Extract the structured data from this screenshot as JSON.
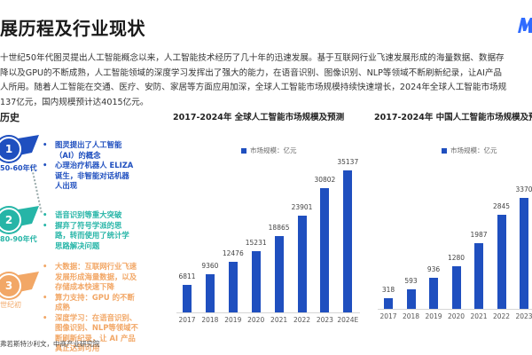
{
  "header": {
    "title": "展历程及行业现状",
    "logo_icon": "brand-logo-icon"
  },
  "intro": {
    "lines": [
      "十世纪50年代图灵提出人工智能概念以来，人工智能技术经历了几十年的迅速发展。基于互联网行业飞速发展形成的海量数据、数据存",
      "降以及GPU的不断成熟，人工智能领域的深度学习发挥出了强大的能力，在语音识别、图像识别、NLP等领域不断刷新纪录，让AI产品",
      "人所用。随着人工智能在交通、医疗、安防、家居等方面应用加深，全球人工智能市场规模持续快速增长，2024年全球人工智能市场规",
      "137亿元，国内规模预计达4015亿元。"
    ]
  },
  "history": {
    "title": "历史",
    "eras": [
      {
        "number": "1",
        "label": "50-60年代",
        "color": "#1f4fbf",
        "bullets": [
          "图灵提出了人工智能（AI）的概念",
          "心理治疗机器人 ELIZA 诞生，非智能对话机器人出现"
        ]
      },
      {
        "number": "2",
        "label": "80-90年代",
        "color": "#26b5a7",
        "bullets": [
          "语音识别等重大突破",
          "摒弃了符号学派的思路，转而使用了统计学思路解决问题"
        ]
      },
      {
        "number": "3",
        "label": "世纪初",
        "color": "#f2a766",
        "bullets": [
          "大数据：互联网行业飞速发展形成海量数据，以及存储成本快速下降",
          "算力支持：GPU 的不断成熟",
          "深度学习：在语音识别、图像识别、NLP等领域不断刷新纪录，让 AI 产品真正达到可用"
        ]
      }
    ]
  },
  "source": "弗若斯特沙利文，中商产业研究院",
  "chart_data": [
    {
      "type": "bar",
      "title": "2017-2024年 全球人工智能市场规模及预测",
      "legend": [
        "市场规模：亿元"
      ],
      "legend_position": "top",
      "categories": [
        "2017",
        "2018",
        "2019",
        "2020",
        "2021",
        "2022",
        "2023",
        "2024E"
      ],
      "series": [
        {
          "name": "市场规模：亿元",
          "values": [
            6811,
            9360,
            12476,
            15231,
            18865,
            23901,
            30802,
            35137
          ]
        }
      ],
      "xlabel": "",
      "ylabel": "",
      "ylim": [
        0,
        36000
      ],
      "grid": false,
      "color": "#1f4fbf"
    },
    {
      "type": "bar",
      "title": "2017-2024年 中国人工智能市场规模及预测",
      "legend": [
        "市场规模：亿元"
      ],
      "legend_position": "top",
      "categories": [
        "2017",
        "2018",
        "2019",
        "2020",
        "2021",
        "2022",
        "2023"
      ],
      "series": [
        {
          "name": "市场规模：亿元",
          "values": [
            318,
            593,
            936,
            1280,
            1987,
            2845,
            3370
          ]
        }
      ],
      "xlabel": "",
      "ylabel": "",
      "ylim": [
        0,
        3500
      ],
      "grid": false,
      "color": "#1f4fbf"
    }
  ]
}
